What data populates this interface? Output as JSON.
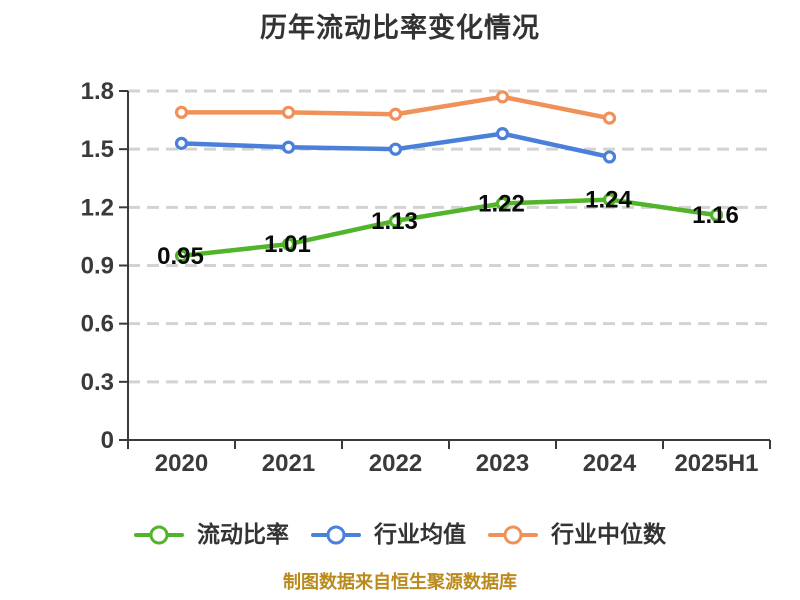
{
  "chart_data": {
    "type": "line",
    "title": "历年流动比率变化情况",
    "caption": "制图数据来自恒生聚源数据库",
    "categories": [
      "2020",
      "2021",
      "2022",
      "2023",
      "2024",
      "2025H1"
    ],
    "series": [
      {
        "name": "流动比率",
        "color": "#52b42a",
        "values": [
          0.95,
          1.01,
          1.13,
          1.22,
          1.24,
          1.16
        ],
        "show_labels": true
      },
      {
        "name": "行业均值",
        "color": "#4a80d9",
        "values": [
          1.53,
          1.51,
          1.5,
          1.58,
          1.46,
          null
        ],
        "show_labels": false
      },
      {
        "name": "行业中位数",
        "color": "#f0915a",
        "values": [
          1.69,
          1.69,
          1.68,
          1.77,
          1.66,
          null
        ],
        "show_labels": false
      }
    ],
    "ylim": [
      0,
      1.8
    ],
    "yticks": [
      0,
      0.3,
      0.6,
      0.9,
      1.2,
      1.5,
      1.8
    ],
    "grid": "dashed-horizontal",
    "legend_position": "bottom",
    "marker_style": "hollow-circle",
    "style": {
      "grid_color": "#d3d3d3",
      "axis_color": "#3a3a3a",
      "tick_label_color": "#3a3a3a",
      "value_label_color": "#0a0a0a",
      "title_color": "#333333",
      "legend_text_color": "#333333",
      "caption_color": "#bb8a1c",
      "marker_fill": "#ffffff",
      "background": "#ffffff"
    }
  }
}
